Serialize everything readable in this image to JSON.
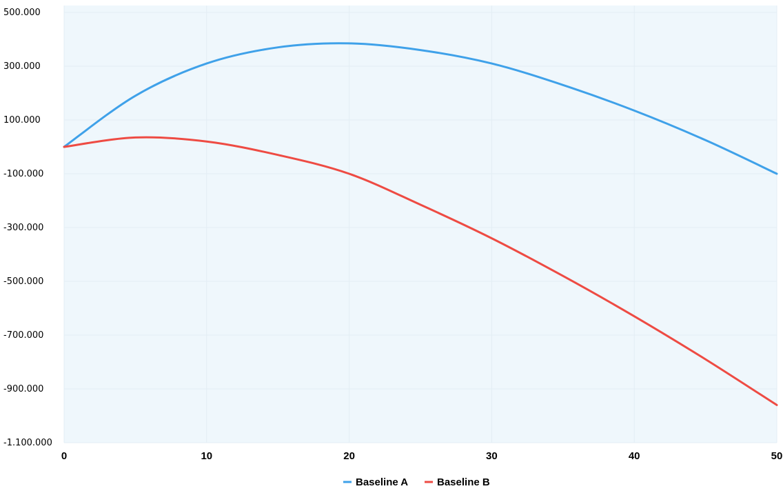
{
  "chart_data": {
    "type": "line",
    "title": "",
    "xlabel": "",
    "ylabel": "",
    "xlim": [
      0,
      50
    ],
    "ylim": [
      -1100000,
      500000
    ],
    "x_ticks": [
      0,
      10,
      20,
      30,
      40,
      50
    ],
    "x_tick_labels": [
      "0",
      "10",
      "20",
      "30",
      "40",
      "50"
    ],
    "y_ticks": [
      500000,
      300000,
      100000,
      -100000,
      -300000,
      -500000,
      -700000,
      -900000,
      -1100000
    ],
    "y_tick_labels": [
      "500.000",
      "300.000",
      "100.000",
      "-100.000",
      "-300.000",
      "-500.000",
      "-700.000",
      "-900.000",
      "-1.100.000"
    ],
    "grid": true,
    "legend_position": "bottom-center",
    "background_color": "#eff7fc",
    "series": [
      {
        "name": "Baseline A",
        "color": "#3fa1e9",
        "x": [
          0,
          5,
          10,
          15,
          20,
          25,
          30,
          35,
          40,
          45,
          50
        ],
        "y": [
          0,
          190000,
          310000,
          370000,
          385000,
          360000,
          310000,
          230000,
          135000,
          25000,
          -100000
        ]
      },
      {
        "name": "Baseline B",
        "color": "#ee4b43",
        "x": [
          0,
          5,
          10,
          15,
          20,
          25,
          30,
          35,
          40,
          45,
          50
        ],
        "y": [
          0,
          35000,
          20000,
          -30000,
          -100000,
          -215000,
          -340000,
          -480000,
          -630000,
          -790000,
          -960000
        ]
      }
    ]
  }
}
